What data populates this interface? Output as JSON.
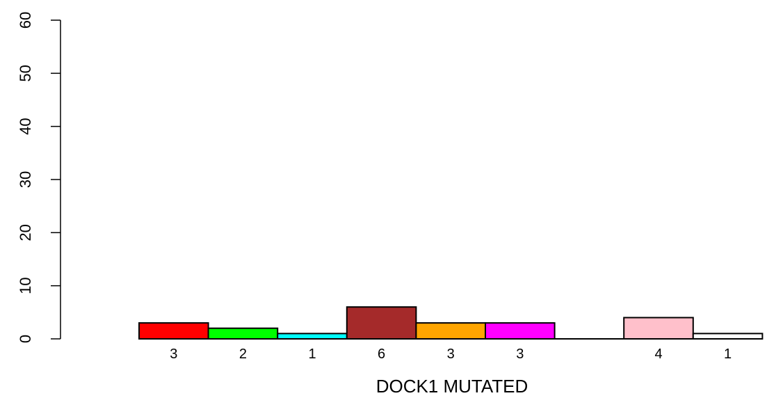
{
  "chart_data": {
    "type": "bar",
    "xlabel": "DOCK1 MUTATED",
    "ylabel": "",
    "ylim": [
      0,
      60
    ],
    "yticks": [
      0,
      10,
      20,
      30,
      40,
      50,
      60
    ],
    "bars": [
      {
        "value": 3,
        "label": "3",
        "color": "#ff0000"
      },
      {
        "value": 2,
        "label": "2",
        "color": "#00ff00"
      },
      {
        "value": 1,
        "label": "1",
        "color": "#00ffff"
      },
      {
        "value": 6,
        "label": "6",
        "color": "#a52a2a"
      },
      {
        "value": 3,
        "label": "3",
        "color": "#ffa500"
      },
      {
        "value": 3,
        "label": "3",
        "color": "#ff00ff"
      },
      {
        "value": 0,
        "label": "",
        "color": "#ffffff"
      },
      {
        "value": 4,
        "label": "4",
        "color": "#ffc0cb"
      },
      {
        "value": 1,
        "label": "1",
        "color": "#ffffff"
      }
    ],
    "grid": false,
    "legend": "none"
  }
}
